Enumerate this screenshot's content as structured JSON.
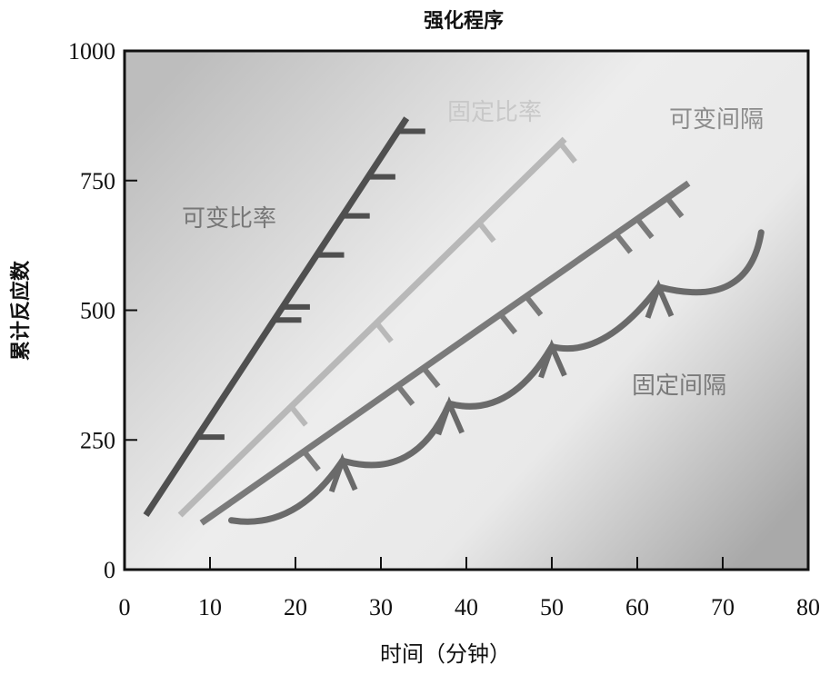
{
  "chart_data": {
    "type": "line",
    "title": "强化程序",
    "xlabel": "时间（分钟）",
    "ylabel": "累计反应数",
    "xlim": [
      0,
      80
    ],
    "ylim": [
      0,
      1000
    ],
    "xticks": [
      0,
      10,
      20,
      30,
      40,
      50,
      60,
      70,
      80
    ],
    "yticks": [
      0,
      250,
      500,
      750,
      1000
    ],
    "grid": false,
    "background": "gradient-gray",
    "series": [
      {
        "name": "可变比率",
        "color": "#4f4f4f",
        "line": [
          [
            2.5,
            105
          ],
          [
            33,
            870
          ]
        ],
        "reinforcements_x": [
          8.5,
          17.5,
          18.5,
          22.5,
          25.5,
          28.5,
          32
        ]
      },
      {
        "name": "固定比率",
        "color": "#b8b8b8",
        "line": [
          [
            6.5,
            105
          ],
          [
            51.5,
            830
          ]
        ],
        "reinforcements_x": [
          19.5,
          29.5,
          41.5,
          51
        ]
      },
      {
        "name": "可变间隔",
        "color": "#7a7a7a",
        "line": [
          [
            9,
            90
          ],
          [
            66,
            745
          ]
        ],
        "reinforcements_x": [
          21,
          32,
          35,
          44,
          47,
          57.5,
          60,
          63.5
        ]
      },
      {
        "name": "固定间隔",
        "color": "#6a6a6a",
        "scallops": [
          [
            [
              12.5,
              95
            ],
            [
              20,
              75
            ],
            [
              25.5,
              210
            ]
          ],
          [
            [
              25.5,
              210
            ],
            [
              34,
              170
            ],
            [
              38,
              320
            ]
          ],
          [
            [
              38,
              320
            ],
            [
              45,
              290
            ],
            [
              50,
              430
            ]
          ],
          [
            [
              50,
              430
            ],
            [
              56,
              405
            ],
            [
              62.5,
              545
            ]
          ],
          [
            [
              62.5,
              545
            ],
            [
              73,
              500
            ],
            [
              74.5,
              650
            ]
          ]
        ],
        "reinforcements_x": [
          25.5,
          38,
          50,
          62.5
        ]
      }
    ]
  }
}
